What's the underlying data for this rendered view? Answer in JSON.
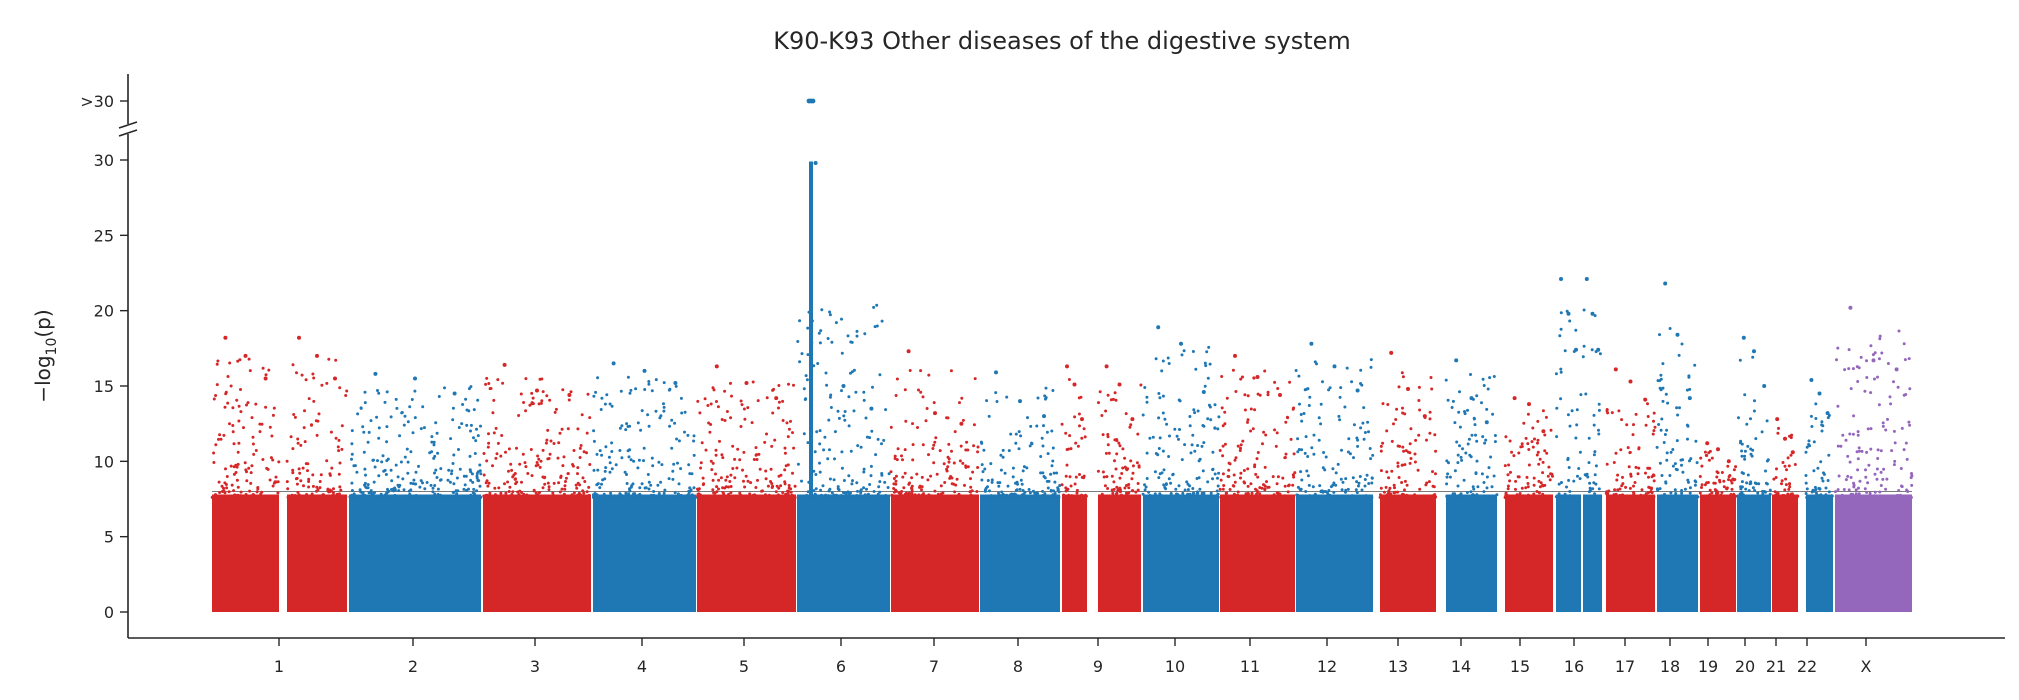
{
  "chart_data": {
    "type": "scatter",
    "subtype": "manhattan",
    "title": "K90-K93 Other diseases of the digestive system",
    "ylabel_main": "−log",
    "ylabel_sub": "10",
    "ylabel_tail": "(p)",
    "xlabel": "",
    "ylim": [
      0,
      30
    ],
    "yticks": [
      0,
      5,
      10,
      15,
      20,
      25,
      30
    ],
    "ytick_labels": [
      "0",
      "5",
      "10",
      "15",
      "20",
      "25",
      "30"
    ],
    "capped_label": ">30",
    "threshold": 8,
    "colors": {
      "red": "#d62728",
      "blue": "#1f77b4",
      "purple": "#9467bd"
    },
    "chromosomes": [
      {
        "label": "1",
        "color": "red",
        "peaks": [
          18.2,
          17.0,
          15.5
        ]
      },
      {
        "label": "2",
        "color": "blue",
        "peaks": [
          15.8,
          15.5,
          14.5
        ]
      },
      {
        "label": "3",
        "color": "red",
        "peaks": [
          16.4,
          14.7,
          14.4
        ]
      },
      {
        "label": "4",
        "color": "blue",
        "peaks": [
          16.5,
          16.0,
          15.2
        ]
      },
      {
        "label": "5",
        "color": "red",
        "peaks": [
          16.3,
          15.2,
          14.2
        ]
      },
      {
        "label": "6",
        "color": "blue",
        "peaks": [
          29.8,
          15.0,
          13.5
        ]
      },
      {
        "label": "7",
        "color": "red",
        "peaks": [
          17.3,
          13.2,
          12.5
        ]
      },
      {
        "label": "8",
        "color": "blue",
        "peaks": [
          15.9,
          14.0,
          13.0
        ]
      },
      {
        "label": "9",
        "color": "red",
        "peaks": [
          16.3,
          15.1,
          12.8
        ]
      },
      {
        "label": "10",
        "color": "blue",
        "peaks": [
          18.9,
          17.8,
          14.6
        ]
      },
      {
        "label": "11",
        "color": "red",
        "peaks": [
          17.0,
          15.6,
          14.4
        ]
      },
      {
        "label": "12",
        "color": "blue",
        "peaks": [
          17.8,
          16.3,
          14.7
        ]
      },
      {
        "label": "13",
        "color": "red",
        "peaks": [
          17.2,
          14.8,
          13.0
        ]
      },
      {
        "label": "14",
        "color": "blue",
        "peaks": [
          16.7,
          14.2,
          12.6
        ]
      },
      {
        "label": "15",
        "color": "red",
        "peaks": [
          14.2,
          13.8,
          12.0
        ]
      },
      {
        "label": "16",
        "color": "blue",
        "peaks": [
          22.1,
          19.8,
          17.4
        ]
      },
      {
        "label": "17",
        "color": "red",
        "peaks": [
          16.1,
          15.3,
          14.1
        ]
      },
      {
        "label": "18",
        "color": "blue",
        "peaks": [
          21.8,
          18.4,
          14.2
        ]
      },
      {
        "label": "19",
        "color": "red",
        "peaks": [
          11.2,
          10.8,
          10.0
        ]
      },
      {
        "label": "20",
        "color": "blue",
        "peaks": [
          18.2,
          17.3,
          15.0
        ]
      },
      {
        "label": "21",
        "color": "red",
        "peaks": [
          12.8,
          11.5,
          10.6
        ]
      },
      {
        "label": "22",
        "color": "blue",
        "peaks": [
          15.4,
          14.5,
          13.2
        ]
      },
      {
        "label": "X",
        "color": "purple",
        "peaks": [
          20.2,
          16.7,
          16.1
        ]
      }
    ],
    "capped_points_chromosome": "6",
    "grid": false,
    "legend": "none"
  }
}
